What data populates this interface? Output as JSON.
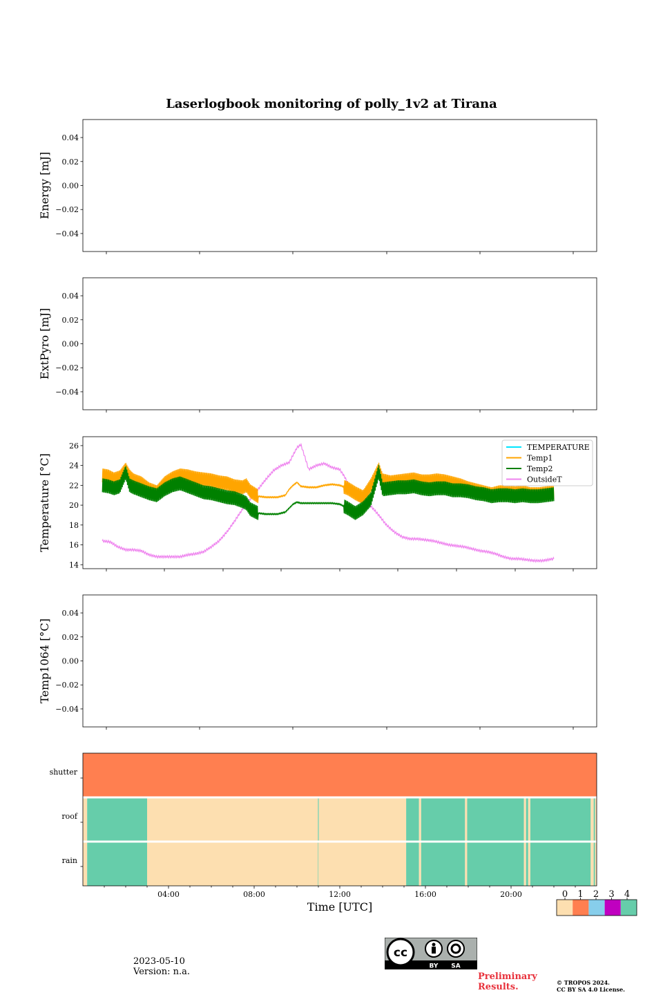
{
  "title": "Laserlogbook monitoring of polly_1v2 at Tirana",
  "footer": {
    "date": "2023-05-10",
    "version": "Version: n.a.",
    "preliminary_line1": "Preliminary",
    "preliminary_line2": "Results.",
    "copyright_line1": "© TROPOS 2024.",
    "copyright_line2": "CC BY SA 4.0 License.",
    "license_badge": {
      "cc": "cc",
      "by": "BY",
      "sa": "SA"
    }
  },
  "chart_data": [
    {
      "type": "line",
      "id": "energy",
      "ylabel": "Energy [mJ]",
      "ylim": [
        -0.055,
        0.055
      ],
      "yticks": [
        0.04,
        0.02,
        0.0,
        -0.02,
        -0.04
      ],
      "ytick_labels": [
        "0.04",
        "0.02",
        "0.00",
        "−0.02",
        "−0.04"
      ],
      "series": []
    },
    {
      "type": "line",
      "id": "extpyro",
      "ylabel": "ExtPyro [mJ]",
      "ylim": [
        -0.055,
        0.055
      ],
      "yticks": [
        0.04,
        0.02,
        0.0,
        -0.02,
        -0.04
      ],
      "ytick_labels": [
        "0.04",
        "0.02",
        "0.00",
        "−0.02",
        "−0.04"
      ],
      "series": []
    },
    {
      "type": "line",
      "id": "temperature",
      "ylabel": "Temperature [°C]",
      "xlim_hours": [
        0,
        26.4
      ],
      "ylim": [
        13.6,
        26.9
      ],
      "yticks": [
        14,
        16,
        18,
        20,
        22,
        24,
        26
      ],
      "ytick_labels": [
        "14",
        "16",
        "18",
        "20",
        "22",
        "24",
        "26"
      ],
      "legend_position": "top-right",
      "series": [
        {
          "name": "TEMPERATURE",
          "color": "#00e5ff",
          "x": [],
          "y": []
        },
        {
          "name": "Temp1",
          "color": "#ffa500",
          "x": [
            1.0,
            1.3,
            1.6,
            1.9,
            2.2,
            2.4,
            2.6,
            3.0,
            3.4,
            3.8,
            4.2,
            4.6,
            5.0,
            5.4,
            5.8,
            6.2,
            6.6,
            7.0,
            7.4,
            7.8,
            8.2,
            8.4,
            8.6,
            9.0,
            9.4,
            10.0,
            10.4,
            10.6,
            10.8,
            11.0,
            11.2,
            11.6,
            12.0,
            12.4,
            12.8,
            13.2,
            13.6,
            14.0,
            14.4,
            14.8,
            15.0,
            15.2,
            15.4,
            15.8,
            16.2,
            16.6,
            17.0,
            17.4,
            17.8,
            18.2,
            18.6,
            19.0,
            19.4,
            19.8,
            20.2,
            20.6,
            21.0,
            21.4,
            21.8,
            22.2,
            22.6,
            23.0,
            23.4,
            23.8,
            24.2
          ],
          "y": [
            23.0,
            22.9,
            22.6,
            22.8,
            23.6,
            22.9,
            22.5,
            22.2,
            21.6,
            21.3,
            22.2,
            22.7,
            23.0,
            22.9,
            22.7,
            22.6,
            22.5,
            22.3,
            22.2,
            21.9,
            21.8,
            22.0,
            21.4,
            20.9,
            20.8,
            20.8,
            21.0,
            21.6,
            22.0,
            22.3,
            21.9,
            21.8,
            21.8,
            22.0,
            22.1,
            22.0,
            21.7,
            21.2,
            20.8,
            22.0,
            22.8,
            23.6,
            22.5,
            22.3,
            22.4,
            22.5,
            22.6,
            22.4,
            22.4,
            22.5,
            22.4,
            22.2,
            22.0,
            21.7,
            21.5,
            21.3,
            21.1,
            21.3,
            21.3,
            21.2,
            21.3,
            21.1,
            21.1,
            21.2,
            21.3
          ]
        },
        {
          "name": "Temp2",
          "color": "#008000",
          "x": [
            1.0,
            1.3,
            1.6,
            1.9,
            2.2,
            2.4,
            2.6,
            3.0,
            3.4,
            3.8,
            4.2,
            4.6,
            5.0,
            5.4,
            5.8,
            6.2,
            6.6,
            7.0,
            7.4,
            7.8,
            8.2,
            8.4,
            8.6,
            9.0,
            9.4,
            10.0,
            10.4,
            10.6,
            10.8,
            11.0,
            11.2,
            11.6,
            12.0,
            12.4,
            12.8,
            13.2,
            13.6,
            14.0,
            14.4,
            14.8,
            15.0,
            15.2,
            15.4,
            15.8,
            16.2,
            16.6,
            17.0,
            17.4,
            17.8,
            18.2,
            18.6,
            19.0,
            19.4,
            19.8,
            20.2,
            20.6,
            21.0,
            21.4,
            21.8,
            22.2,
            22.6,
            23.0,
            23.4,
            23.8,
            24.2
          ],
          "y": [
            22.0,
            21.9,
            21.7,
            21.9,
            23.3,
            22.0,
            21.8,
            21.5,
            21.2,
            21.0,
            21.6,
            22.0,
            22.2,
            21.9,
            21.6,
            21.3,
            21.2,
            21.0,
            20.8,
            20.7,
            20.4,
            20.2,
            19.6,
            19.2,
            19.1,
            19.1,
            19.3,
            19.7,
            20.1,
            20.3,
            20.2,
            20.2,
            20.2,
            20.2,
            20.2,
            20.1,
            19.7,
            19.2,
            19.7,
            20.6,
            22.0,
            23.4,
            21.6,
            21.7,
            21.8,
            21.8,
            21.9,
            21.7,
            21.6,
            21.7,
            21.7,
            21.5,
            21.5,
            21.4,
            21.2,
            21.1,
            20.9,
            21.0,
            21.0,
            20.9,
            21.0,
            20.9,
            20.9,
            21.0,
            21.1
          ]
        },
        {
          "name": "OutsideT",
          "color": "#ee82ee",
          "x": [
            1.0,
            1.4,
            1.8,
            2.2,
            2.6,
            3.0,
            3.4,
            3.8,
            4.2,
            4.6,
            5.0,
            5.4,
            5.8,
            6.2,
            6.6,
            7.0,
            7.4,
            7.8,
            8.2,
            8.6,
            9.0,
            9.4,
            9.8,
            10.2,
            10.6,
            11.0,
            11.2,
            11.4,
            11.6,
            12.0,
            12.4,
            12.8,
            13.2,
            13.4,
            13.6,
            13.8,
            14.0,
            14.4,
            14.8,
            15.2,
            15.6,
            16.0,
            16.4,
            16.8,
            17.2,
            17.6,
            18.0,
            18.4,
            18.8,
            19.2,
            19.6,
            20.0,
            20.4,
            20.8,
            21.2,
            21.6,
            22.0,
            22.4,
            22.8,
            23.2,
            23.6,
            24.2
          ],
          "y": [
            16.4,
            16.3,
            15.8,
            15.5,
            15.5,
            15.4,
            15.0,
            14.8,
            14.8,
            14.8,
            14.8,
            15.0,
            15.1,
            15.3,
            15.8,
            16.4,
            17.3,
            18.4,
            19.6,
            20.6,
            21.6,
            22.6,
            23.5,
            24.0,
            24.3,
            25.8,
            26.1,
            24.9,
            23.6,
            24.0,
            24.2,
            23.8,
            23.6,
            23.0,
            22.3,
            21.4,
            20.8,
            20.4,
            19.9,
            19.0,
            18.0,
            17.3,
            16.8,
            16.6,
            16.6,
            16.5,
            16.4,
            16.2,
            16.0,
            15.9,
            15.8,
            15.6,
            15.4,
            15.3,
            15.1,
            14.8,
            14.6,
            14.6,
            14.5,
            14.4,
            14.4,
            14.6
          ]
        }
      ]
    },
    {
      "type": "line",
      "id": "temp1064",
      "ylabel": "Temp1064 [°C]",
      "ylim": [
        -0.055,
        0.055
      ],
      "yticks": [
        0.04,
        0.02,
        0.0,
        -0.02,
        -0.04
      ],
      "ytick_labels": [
        "0.04",
        "0.02",
        "0.00",
        "−0.02",
        "−0.04"
      ],
      "series": []
    },
    {
      "type": "heatmap",
      "id": "status",
      "xlabel": "Time [UTC]",
      "xlim_hours": [
        0,
        24
      ],
      "xtick_hours": [
        4,
        8,
        12,
        16,
        20
      ],
      "xtick_labels": [
        "04:00",
        "08:00",
        "12:00",
        "16:00",
        "20:00"
      ],
      "rows": [
        "shutter",
        "roof",
        "rain"
      ],
      "colorbar": {
        "labels": [
          "0",
          "1",
          "2",
          "3",
          "4"
        ],
        "colors": [
          "#fddfb0",
          "#ff7f50",
          "#87ceeb",
          "#c000c0",
          "#66cdaa"
        ]
      },
      "segments": {
        "shutter": [
          [
            0.0,
            24.0,
            1
          ]
        ],
        "roof": [
          [
            0.0,
            0.2,
            0
          ],
          [
            0.2,
            3.0,
            4
          ],
          [
            3.0,
            10.98,
            0
          ],
          [
            10.98,
            11.02,
            4
          ],
          [
            11.02,
            15.1,
            0
          ],
          [
            15.1,
            15.7,
            4
          ],
          [
            15.7,
            15.8,
            0
          ],
          [
            15.8,
            17.85,
            4
          ],
          [
            17.85,
            17.95,
            0
          ],
          [
            17.95,
            20.6,
            4
          ],
          [
            20.6,
            20.7,
            0
          ],
          [
            20.7,
            20.8,
            4
          ],
          [
            20.8,
            20.9,
            0
          ],
          [
            20.9,
            23.72,
            4
          ],
          [
            23.72,
            23.86,
            0
          ],
          [
            23.86,
            23.92,
            4
          ],
          [
            23.92,
            24.0,
            0
          ]
        ],
        "rain": [
          [
            0.0,
            0.2,
            0
          ],
          [
            0.2,
            3.0,
            4
          ],
          [
            3.0,
            10.98,
            0
          ],
          [
            10.98,
            11.0,
            4
          ],
          [
            11.0,
            15.1,
            0
          ],
          [
            15.1,
            15.7,
            4
          ],
          [
            15.7,
            15.8,
            0
          ],
          [
            15.8,
            17.85,
            4
          ],
          [
            17.85,
            17.95,
            0
          ],
          [
            17.95,
            20.6,
            4
          ],
          [
            20.6,
            20.7,
            0
          ],
          [
            20.7,
            20.8,
            4
          ],
          [
            20.8,
            20.9,
            0
          ],
          [
            20.9,
            23.72,
            4
          ],
          [
            23.72,
            23.86,
            0
          ],
          [
            23.86,
            23.92,
            4
          ],
          [
            23.92,
            24.0,
            0
          ]
        ]
      }
    }
  ]
}
